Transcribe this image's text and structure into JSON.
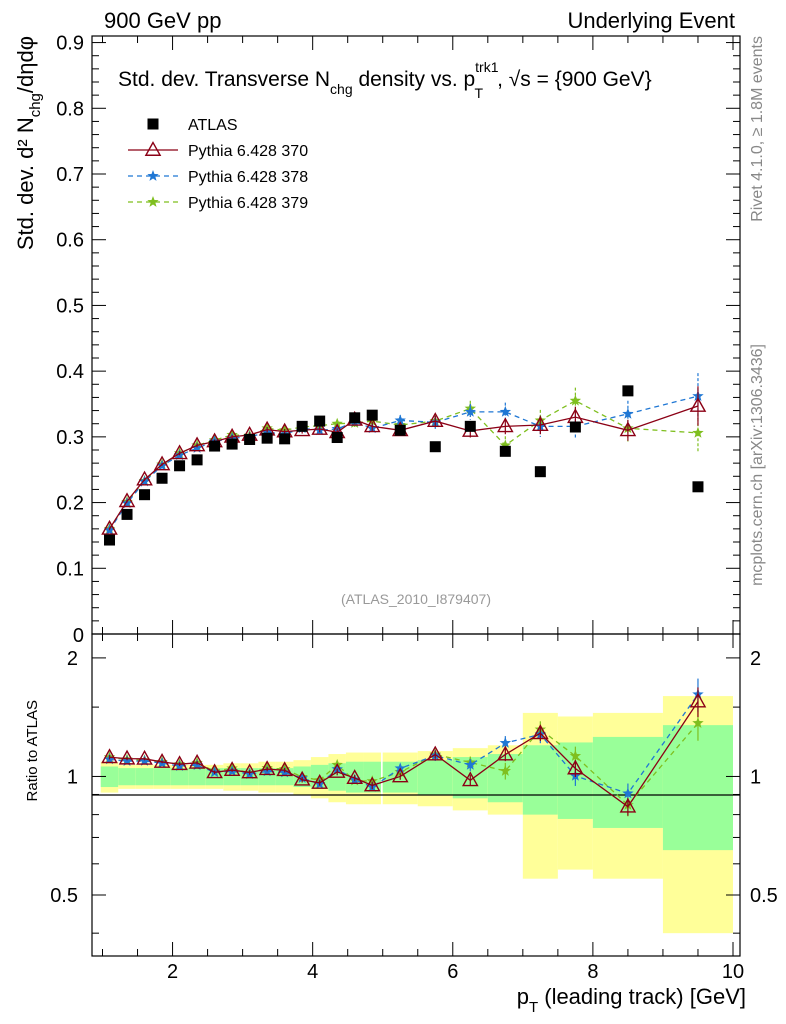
{
  "chart_data": {
    "type": "scatter",
    "title": "Std. dev. Transverse N",
    "title_sub": "chg",
    "title_mid": " density vs. p",
    "title_sup": "trk1",
    "title_sub2": "T",
    "title_tail": ", √s = {900 GeV}",
    "header_left": "900 GeV pp",
    "header_right": "Underlying Event",
    "side_label_top": "Rivet 4.1.0, ≥ 1.8M events",
    "side_label_bottom": "mcplots.cern.ch [arXiv:1306.3436]",
    "analysis_label": "(ATLAS_2010_I879407)",
    "ylabel": "Std. dev. d² N",
    "ylabel_sub": "chg",
    "ylabel_tail": "/dηdφ",
    "ratio_ylabel": "Ratio to ATLAS",
    "xlabel_main": "p",
    "xlabel_sub": "T",
    "xlabel_tail": " (leading track) [GeV]",
    "xlim": [
      0.85,
      10.1
    ],
    "ylim": [
      0,
      0.91
    ],
    "ratio_ylim": [
      0.35,
      2.3
    ],
    "x_ticks": [
      2,
      4,
      6,
      8,
      10
    ],
    "y_ticks": [
      0.1,
      0.2,
      0.3,
      0.4,
      0.5,
      0.6,
      0.7,
      0.8,
      0.9
    ],
    "y_tick_labels": [
      "0.1",
      "0.2",
      "0.3",
      "0.4",
      "0.5",
      "0.6",
      "0.7",
      "0.8",
      "0.9"
    ],
    "y_zero_label": "0",
    "ratio_ticks": [
      0.5,
      1,
      2
    ],
    "ratio_tick_labels": [
      "0.5",
      "1",
      "2"
    ],
    "x": [
      1.1,
      1.35,
      1.6,
      1.85,
      2.1,
      2.35,
      2.6,
      2.85,
      3.1,
      3.35,
      3.6,
      3.85,
      4.1,
      4.35,
      4.6,
      4.85,
      5.25,
      5.75,
      6.25,
      6.75,
      7.25,
      7.75,
      8.5,
      9.5
    ],
    "x_err": [
      0.125,
      0.125,
      0.125,
      0.125,
      0.125,
      0.125,
      0.125,
      0.125,
      0.125,
      0.125,
      0.125,
      0.125,
      0.125,
      0.125,
      0.125,
      0.125,
      0.25,
      0.25,
      0.25,
      0.25,
      0.25,
      0.25,
      0.5,
      0.5
    ],
    "band_green": [
      0.06,
      0.05,
      0.05,
      0.05,
      0.05,
      0.05,
      0.05,
      0.05,
      0.05,
      0.05,
      0.05,
      0.06,
      0.07,
      0.08,
      0.09,
      0.09,
      0.09,
      0.1,
      0.12,
      0.14,
      0.2,
      0.22,
      0.26,
      0.35
    ],
    "band_yellow": [
      0.09,
      0.07,
      0.07,
      0.07,
      0.07,
      0.07,
      0.07,
      0.08,
      0.08,
      0.09,
      0.09,
      0.1,
      0.12,
      0.14,
      0.15,
      0.15,
      0.15,
      0.16,
      0.18,
      0.2,
      0.45,
      0.42,
      0.45,
      0.6
    ],
    "legend_position": "top-left",
    "series": [
      {
        "name": "ATLAS",
        "color": "#000000",
        "marker": "square",
        "values": [
          0.143,
          0.182,
          0.212,
          0.237,
          0.256,
          0.265,
          0.286,
          0.289,
          0.296,
          0.298,
          0.297,
          0.316,
          0.324,
          0.299,
          0.329,
          0.333,
          0.31,
          0.285,
          0.316,
          0.278,
          0.247,
          0.315,
          0.37,
          0.224
        ],
        "errors": [
          0,
          0,
          0,
          0,
          0,
          0,
          0,
          0,
          0,
          0,
          0,
          0,
          0,
          0,
          0,
          0,
          0,
          0,
          0,
          0,
          0,
          0,
          0,
          0
        ]
      },
      {
        "name": "Pythia 6.428 370",
        "color": "#8b0015",
        "marker": "triangle-open",
        "line": "solid",
        "values": [
          0.16,
          0.202,
          0.235,
          0.258,
          0.275,
          0.287,
          0.293,
          0.3,
          0.303,
          0.311,
          0.308,
          0.31,
          0.312,
          0.307,
          0.326,
          0.316,
          0.31,
          0.324,
          0.309,
          0.316,
          0.318,
          0.33,
          0.31,
          0.347
        ],
        "errors": [
          0.002,
          0.002,
          0.002,
          0.002,
          0.003,
          0.003,
          0.003,
          0.003,
          0.004,
          0.004,
          0.004,
          0.005,
          0.005,
          0.006,
          0.006,
          0.007,
          0.006,
          0.008,
          0.01,
          0.012,
          0.014,
          0.016,
          0.016,
          0.03
        ]
      },
      {
        "name": "Pythia 6.428 378",
        "color": "#1f77d4",
        "marker": "star",
        "line": "dashed",
        "values": [
          0.158,
          0.199,
          0.232,
          0.256,
          0.272,
          0.283,
          0.293,
          0.298,
          0.3,
          0.307,
          0.304,
          0.313,
          0.31,
          0.312,
          0.323,
          0.313,
          0.325,
          0.322,
          0.338,
          0.338,
          0.316,
          0.316,
          0.335,
          0.362
        ],
        "errors": [
          0.002,
          0.002,
          0.002,
          0.002,
          0.003,
          0.003,
          0.003,
          0.003,
          0.004,
          0.004,
          0.004,
          0.005,
          0.005,
          0.006,
          0.006,
          0.007,
          0.008,
          0.01,
          0.012,
          0.014,
          0.016,
          0.018,
          0.02,
          0.035
        ]
      },
      {
        "name": "Pythia 6.428 379",
        "color": "#7fbf1f",
        "marker": "star",
        "line": "dashed",
        "values": [
          0.16,
          0.201,
          0.233,
          0.258,
          0.275,
          0.287,
          0.295,
          0.303,
          0.302,
          0.313,
          0.31,
          0.315,
          0.317,
          0.32,
          0.321,
          0.324,
          0.318,
          0.324,
          0.343,
          0.287,
          0.325,
          0.355,
          0.313,
          0.306
        ],
        "errors": [
          0.002,
          0.002,
          0.002,
          0.002,
          0.003,
          0.003,
          0.003,
          0.003,
          0.004,
          0.004,
          0.004,
          0.005,
          0.005,
          0.006,
          0.006,
          0.007,
          0.008,
          0.01,
          0.012,
          0.014,
          0.016,
          0.02,
          0.02,
          0.03
        ]
      }
    ]
  }
}
